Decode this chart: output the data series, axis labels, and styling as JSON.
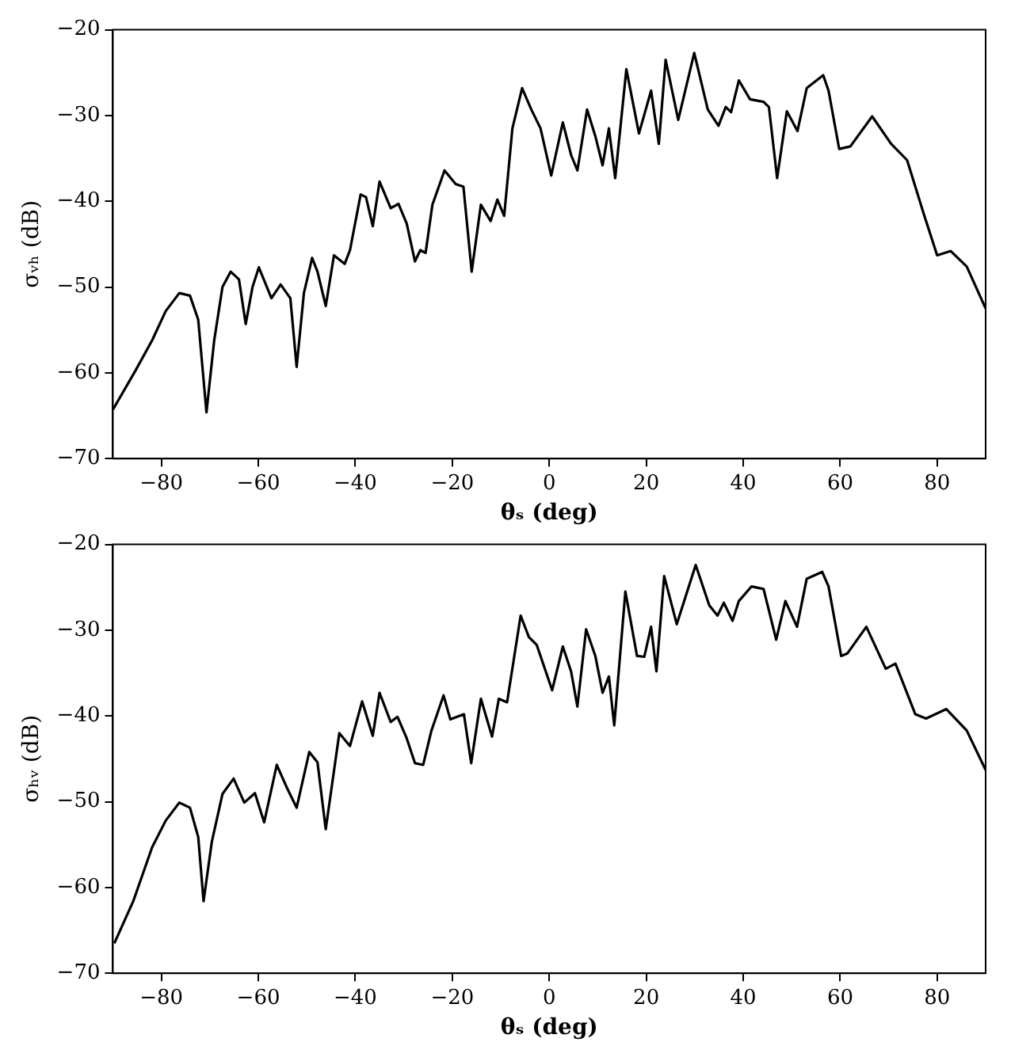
{
  "chart_data": [
    {
      "type": "line",
      "xlabel": "θₛ (deg)",
      "ylabel": "σᵥₕ (dB)",
      "xlim": [
        -90,
        90
      ],
      "xticks": [
        -80,
        -60,
        -40,
        -20,
        0,
        20,
        40,
        60,
        80
      ],
      "ylim": [
        -70,
        -20
      ],
      "yticks": [
        -70,
        -60,
        -50,
        -40,
        -30,
        -20
      ],
      "grid": false,
      "legend": false,
      "marker": "none",
      "line_style": "solid",
      "series": [
        {
          "color": "#000000",
          "x": [
            -90,
            -85.3,
            -81.9,
            -79.1,
            -76.3,
            -74.1,
            -72.4,
            -70.7,
            -69.1,
            -67.4,
            -65.7,
            -64,
            -62.6,
            -61.2,
            -59.9,
            -57.3,
            -55.4,
            -53.4,
            -52.1,
            -50.6,
            -48.9,
            -47.8,
            -46.1,
            -44.4,
            -42.2,
            -41.1,
            -38.9,
            -37.8,
            -36.4,
            -35,
            -32.7,
            -31.1,
            -29.4,
            -27.7,
            -26.6,
            -25.5,
            -24.1,
            -21.6,
            -19.3,
            -17.7,
            -16,
            -14.1,
            -12.1,
            -10.7,
            -9.3,
            -7.6,
            -5.6,
            -3.7,
            -1.8,
            0.4,
            2.8,
            4.5,
            5.8,
            7.8,
            9.5,
            11,
            12.3,
            13.6,
            15.9,
            18.5,
            21,
            22.6,
            24,
            26.6,
            29.9,
            32.7,
            34.9,
            36.4,
            37.5,
            39.1,
            41.4,
            44.2,
            45.3,
            47,
            49,
            51.2,
            53.1,
            56.5,
            57.6,
            59.8,
            62.1,
            66.6,
            70.5,
            73.8,
            77.2,
            80,
            82.8,
            86.1,
            90
          ],
          "values": [
            -64.3,
            -59.7,
            -56.2,
            -52.8,
            -50.7,
            -51,
            -53.8,
            -64.6,
            -56.2,
            -50,
            -48.2,
            -49.1,
            -54.3,
            -50,
            -47.7,
            -51.3,
            -49.7,
            -51.3,
            -59.3,
            -50.7,
            -46.6,
            -48.2,
            -52.2,
            -46.3,
            -47.3,
            -45.7,
            -39.2,
            -39.5,
            -42.9,
            -37.7,
            -40.8,
            -40.3,
            -42.6,
            -47,
            -45.7,
            -46,
            -40.4,
            -36.4,
            -38,
            -38.3,
            -48.2,
            -40.4,
            -42.3,
            -39.8,
            -41.7,
            -31.5,
            -26.8,
            -29.3,
            -31.5,
            -37,
            -30.8,
            -34.6,
            -36.4,
            -29.3,
            -32.4,
            -35.8,
            -31.5,
            -37.3,
            -24.6,
            -32.1,
            -27.1,
            -33.3,
            -23.5,
            -30.5,
            -22.7,
            -29.3,
            -31.2,
            -29,
            -29.6,
            -25.9,
            -28.1,
            -28.4,
            -29,
            -37.3,
            -29.5,
            -31.8,
            -26.8,
            -25.3,
            -27.1,
            -33.9,
            -33.6,
            -30.1,
            -33.3,
            -35.2,
            -41.4,
            -46.3,
            -45.8,
            -47.6,
            -52.5
          ]
        }
      ]
    },
    {
      "type": "line",
      "xlabel": "θₛ (deg)",
      "ylabel": "σₕᵥ (dB)",
      "xlim": [
        -90,
        90
      ],
      "xticks": [
        -80,
        -60,
        -40,
        -20,
        0,
        20,
        40,
        60,
        80
      ],
      "ylim": [
        -70,
        -20
      ],
      "yticks": [
        -70,
        -60,
        -50,
        -40,
        -30,
        -20
      ],
      "grid": false,
      "legend": false,
      "marker": "none",
      "line_style": "solid",
      "series": [
        {
          "color": "#000000",
          "x": [
            -89.7,
            -85.8,
            -81.9,
            -79.1,
            -76.3,
            -74.1,
            -72.4,
            -71.3,
            -69.6,
            -67.4,
            -65.1,
            -62.9,
            -60.7,
            -58.8,
            -56.2,
            -54,
            -52.1,
            -49.5,
            -47.8,
            -46.1,
            -43.3,
            -41.1,
            -38.6,
            -36.4,
            -35,
            -32.7,
            -31.3,
            -29.4,
            -27.7,
            -26,
            -24.3,
            -21.8,
            -20.4,
            -17.6,
            -16.1,
            -14.1,
            -11.8,
            -10.4,
            -8.7,
            -5.9,
            -4.2,
            -2.6,
            0.6,
            2.8,
            4.5,
            5.8,
            7.6,
            9.5,
            11,
            12.3,
            13.4,
            15.7,
            18.1,
            19.6,
            21,
            22.1,
            23.7,
            26.3,
            30.2,
            33,
            34.7,
            36,
            37.8,
            39.1,
            41.7,
            44.2,
            46.8,
            48.7,
            51.1,
            53.1,
            56.3,
            57.6,
            60.2,
            61.5,
            65.4,
            69.4,
            71.4,
            75.5,
            77.7,
            81.9,
            86.1,
            90
          ],
          "values": [
            -66.5,
            -61.6,
            -55.3,
            -52.2,
            -50.1,
            -50.7,
            -54.1,
            -61.6,
            -54.7,
            -49.1,
            -47.3,
            -50.1,
            -49,
            -52.4,
            -45.7,
            -48.5,
            -50.7,
            -44.2,
            -45.4,
            -53.2,
            -42,
            -43.5,
            -38.3,
            -42.3,
            -37.3,
            -40.7,
            -40.1,
            -42.6,
            -45.5,
            -45.7,
            -41.7,
            -37.6,
            -40.4,
            -39.8,
            -45.5,
            -38,
            -42.4,
            -38,
            -38.4,
            -28.3,
            -30.8,
            -31.7,
            -37,
            -31.9,
            -34.8,
            -38.9,
            -29.9,
            -33,
            -37.3,
            -35.4,
            -41.1,
            -25.5,
            -33,
            -33.1,
            -29.6,
            -34.8,
            -23.7,
            -29.3,
            -22.4,
            -27.1,
            -28.3,
            -26.8,
            -28.9,
            -26.6,
            -24.9,
            -25.2,
            -31.1,
            -26.6,
            -29.6,
            -24,
            -23.2,
            -24.9,
            -33,
            -32.7,
            -29.6,
            -34.5,
            -33.9,
            -39.8,
            -40.3,
            -39.2,
            -41.7,
            -46.3
          ]
        }
      ]
    }
  ]
}
